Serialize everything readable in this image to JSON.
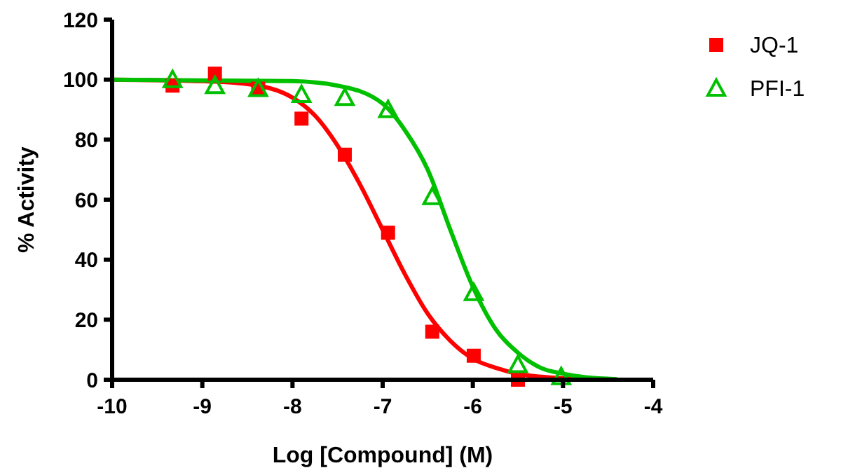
{
  "chart_data": {
    "type": "scatter",
    "xlabel": "Log [Compound] (M)",
    "ylabel": "% Activity",
    "xlim": [
      -10,
      -4
    ],
    "ylim": [
      0,
      120
    ],
    "xticks": [
      -10,
      -9,
      -8,
      -7,
      -6,
      -5,
      -4
    ],
    "yticks": [
      0,
      20,
      40,
      60,
      80,
      100,
      120
    ],
    "grid": false,
    "legend": "top right",
    "series": [
      {
        "name": "JQ-1",
        "type": "scatter",
        "marker": "square",
        "color": "#ff0000",
        "x": [
          -9.33,
          -8.86,
          -8.38,
          -7.9,
          -7.42,
          -6.94,
          -6.45,
          -5.99,
          -5.5
        ],
        "values": [
          98,
          102,
          97,
          87,
          75,
          49,
          16,
          8,
          0
        ]
      },
      {
        "name": "PFI-1",
        "type": "scatter",
        "marker": "triangle",
        "color": "#00c000",
        "x": [
          -9.33,
          -8.86,
          -8.38,
          -7.9,
          -7.42,
          -6.94,
          -6.45,
          -5.99,
          -5.5,
          -5.02
        ],
        "values": [
          100,
          98,
          97,
          95,
          94,
          90,
          61,
          29,
          5,
          1
        ]
      },
      {
        "type": "line",
        "marker": "none",
        "color": "#ff0000",
        "x": [
          -10,
          -9,
          -8.5,
          -8,
          -7.75,
          -7.5,
          -7.25,
          -7,
          -6.75,
          -6.5,
          -6.25,
          -6,
          -5.75,
          -5.5,
          -5,
          -4.5
        ],
        "values": [
          100,
          99.5,
          98.5,
          94,
          88,
          78,
          65,
          50,
          35,
          22,
          13,
          7,
          4,
          2,
          0.5,
          0
        ]
      },
      {
        "type": "line",
        "marker": "none",
        "color": "#00c000",
        "x": [
          -10,
          -8,
          -7.5,
          -7,
          -6.75,
          -6.5,
          -6.25,
          -6,
          -5.75,
          -5.5,
          -5.25,
          -5,
          -4.75,
          -4.4
        ],
        "values": [
          100,
          99.5,
          98,
          92,
          83,
          70,
          50,
          31,
          17,
          9,
          4,
          2,
          0.8,
          0.2
        ]
      }
    ]
  }
}
